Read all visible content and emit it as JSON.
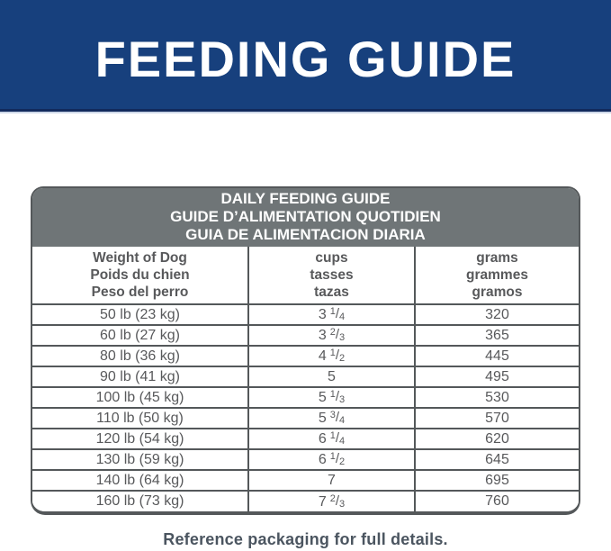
{
  "banner": {
    "title": "FEEDING GUIDE"
  },
  "table": {
    "title_lines": [
      "DAILY FEEDING GUIDE",
      "GUIDE D’ALIMENTATION QUOTIDIEN",
      "GUIA DE ALIMENTACION DIARIA"
    ],
    "columns": [
      {
        "id": "weight",
        "lines": [
          "Weight of Dog",
          "Poids du chien",
          "Peso del perro"
        ]
      },
      {
        "id": "cups",
        "lines": [
          "cups",
          "tasses",
          "tazas"
        ]
      },
      {
        "id": "grams",
        "lines": [
          "grams",
          "grammes",
          "gramos"
        ]
      }
    ],
    "fraction_separator": "/",
    "rows": [
      {
        "weight": "50 lb (23 kg)",
        "cups": {
          "whole": "3",
          "num": "1",
          "den": "4"
        },
        "grams": "320"
      },
      {
        "weight": "60 lb (27 kg)",
        "cups": {
          "whole": "3",
          "num": "2",
          "den": "3"
        },
        "grams": "365"
      },
      {
        "weight": "80 lb (36 kg)",
        "cups": {
          "whole": "4",
          "num": "1",
          "den": "2"
        },
        "grams": "445"
      },
      {
        "weight": "90 lb (41 kg)",
        "cups": {
          "whole": "5"
        },
        "grams": "495"
      },
      {
        "weight": "100 lb (45 kg)",
        "cups": {
          "whole": "5",
          "num": "1",
          "den": "3"
        },
        "grams": "530"
      },
      {
        "weight": "110 lb (50 kg)",
        "cups": {
          "whole": "5",
          "num": "3",
          "den": "4"
        },
        "grams": "570"
      },
      {
        "weight": "120 lb (54 kg)",
        "cups": {
          "whole": "6",
          "num": "1",
          "den": "4"
        },
        "grams": "620"
      },
      {
        "weight": "130 lb (59 kg)",
        "cups": {
          "whole": "6",
          "num": "1",
          "den": "2"
        },
        "grams": "645"
      },
      {
        "weight": "140 lb (64 kg)",
        "cups": {
          "whole": "7"
        },
        "grams": "695"
      },
      {
        "weight": "160 lb (73 kg)",
        "cups": {
          "whole": "7",
          "num": "2",
          "den": "3"
        },
        "grams": "760"
      }
    ]
  },
  "footer": {
    "note": "Reference packaging for full details."
  },
  "colors": {
    "banner_bg": "#17407d",
    "banner_edge_dark": "#122a5c",
    "banner_edge_light": "#ccd7e7",
    "table_header_gray": "#6f7577",
    "table_line_gray": "#54585a",
    "cell_text": "#58595b",
    "footer_text": "#4b5560"
  }
}
